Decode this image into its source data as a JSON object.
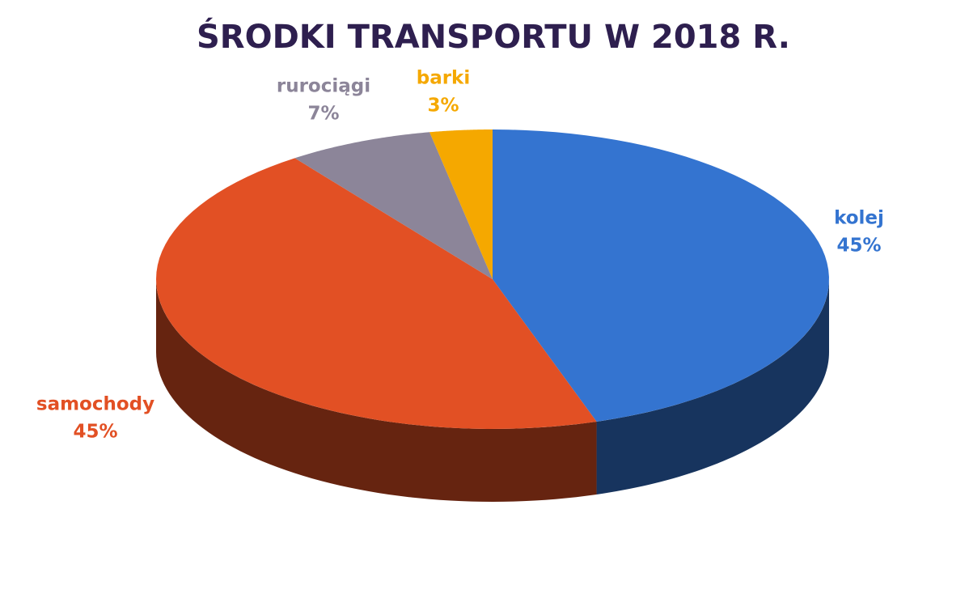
{
  "chart_data": {
    "type": "pie3d",
    "title": "ŚRODKI TRANSPORTU W 2018 R.",
    "categories": [
      "kolej",
      "samochody",
      "rurociągi",
      "barki"
    ],
    "values": [
      45,
      45,
      7,
      3
    ],
    "value_labels": [
      "45%",
      "45%",
      "7%",
      "3%"
    ],
    "colors": [
      "#3474d0",
      "#e25024",
      "#8c8599",
      "#f5a800"
    ]
  }
}
